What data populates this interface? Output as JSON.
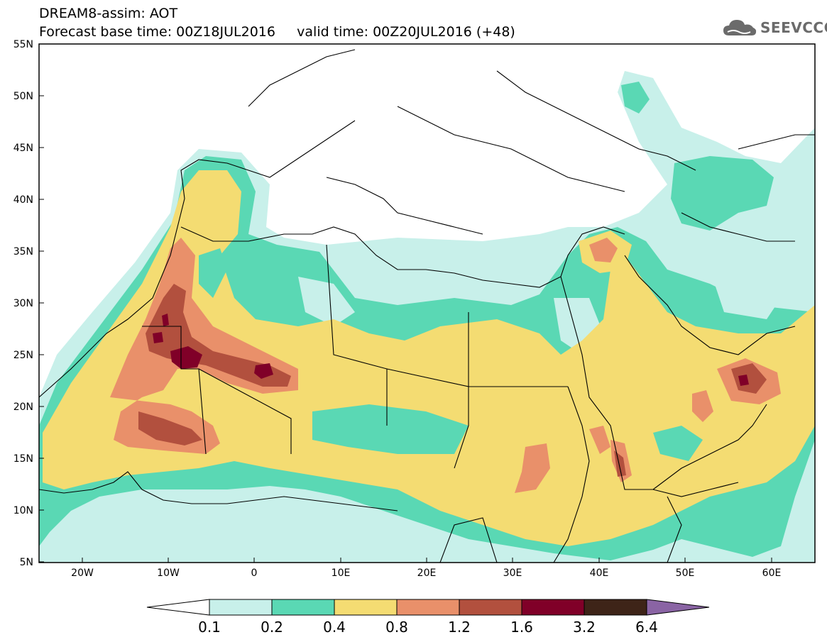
{
  "header": {
    "line1": "DREAM8-assim: AOT",
    "line2": "Forecast base time: 00Z18JUL2016     valid time: 00Z20JUL2016 (+48)"
  },
  "logo": {
    "text": "SEEVCCC",
    "icon": "cloud-icon"
  },
  "map": {
    "lat_labels": [
      "55N",
      "50N",
      "45N",
      "40N",
      "35N",
      "30N",
      "25N",
      "20N",
      "15N",
      "10N",
      "5N"
    ],
    "lon_labels": [
      "20W",
      "10W",
      "0",
      "10E",
      "20E",
      "30E",
      "40E",
      "50E",
      "60E"
    ],
    "colors": {
      "c01": "#c8f0ea",
      "c02": "#5ad8b4",
      "c04": "#f4dc72",
      "c08": "#e9906a",
      "c12": "#b2503e",
      "c16": "#800028",
      "c32": "#3e2418",
      "c64": "#8a64a4"
    }
  },
  "colorbar": {
    "labels": [
      "0.1",
      "0.2",
      "0.4",
      "0.8",
      "1.2",
      "1.6",
      "3.2",
      "6.4"
    ]
  }
}
